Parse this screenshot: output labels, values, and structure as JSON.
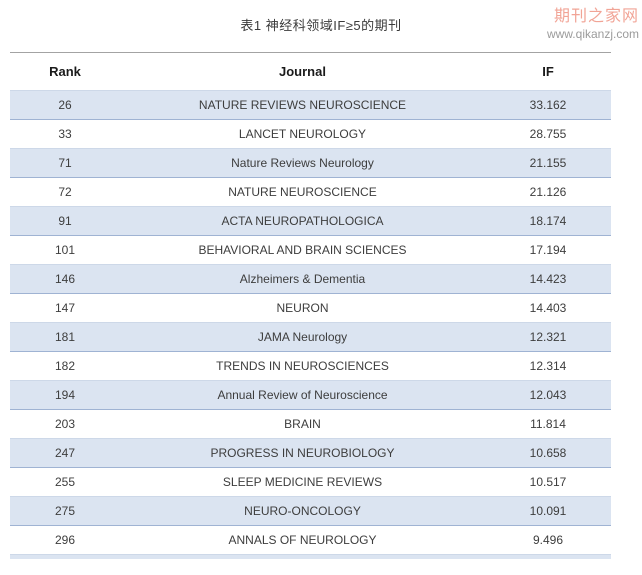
{
  "page": {
    "title": "表1 神经科领域IF≥5的期刊"
  },
  "watermark": {
    "site_name": "期刊之家网",
    "site_url": "www.qikanzj.com"
  },
  "table": {
    "columns": [
      "Rank",
      "Journal",
      "IF"
    ],
    "rows": [
      {
        "rank": "26",
        "journal": "NATURE REVIEWS NEUROSCIENCE",
        "if": "33.162"
      },
      {
        "rank": "33",
        "journal": "LANCET NEUROLOGY",
        "if": "28.755"
      },
      {
        "rank": "71",
        "journal": "Nature Reviews Neurology",
        "if": "21.155"
      },
      {
        "rank": "72",
        "journal": "NATURE NEUROSCIENCE",
        "if": "21.126"
      },
      {
        "rank": "91",
        "journal": "ACTA NEUROPATHOLOGICA",
        "if": "18.174"
      },
      {
        "rank": "101",
        "journal": "BEHAVIORAL AND BRAIN SCIENCES",
        "if": "17.194"
      },
      {
        "rank": "146",
        "journal": "Alzheimers & Dementia",
        "if": "14.423"
      },
      {
        "rank": "147",
        "journal": "NEURON",
        "if": "14.403"
      },
      {
        "rank": "181",
        "journal": "JAMA Neurology",
        "if": "12.321"
      },
      {
        "rank": "182",
        "journal": "TRENDS IN NEUROSCIENCES",
        "if": "12.314"
      },
      {
        "rank": "194",
        "journal": "Annual Review of Neuroscience",
        "if": "12.043"
      },
      {
        "rank": "203",
        "journal": "BRAIN",
        "if": "11.814"
      },
      {
        "rank": "247",
        "journal": "PROGRESS IN NEUROBIOLOGY",
        "if": "10.658"
      },
      {
        "rank": "255",
        "journal": "SLEEP MEDICINE REVIEWS",
        "if": "10.517"
      },
      {
        "rank": "275",
        "journal": "NEURO-ONCOLOGY",
        "if": "10.091"
      },
      {
        "rank": "296",
        "journal": "ANNALS OF NEUROLOGY",
        "if": "9.496"
      }
    ]
  },
  "colors": {
    "row_shaded": "#dbe4f1",
    "border_dark": "#9fb3d3",
    "border_light": "#cdd8e8",
    "header_line": "#a3a3a3",
    "watermark_red": "#ee8e7d",
    "watermark_gray": "#9b9b9b"
  }
}
